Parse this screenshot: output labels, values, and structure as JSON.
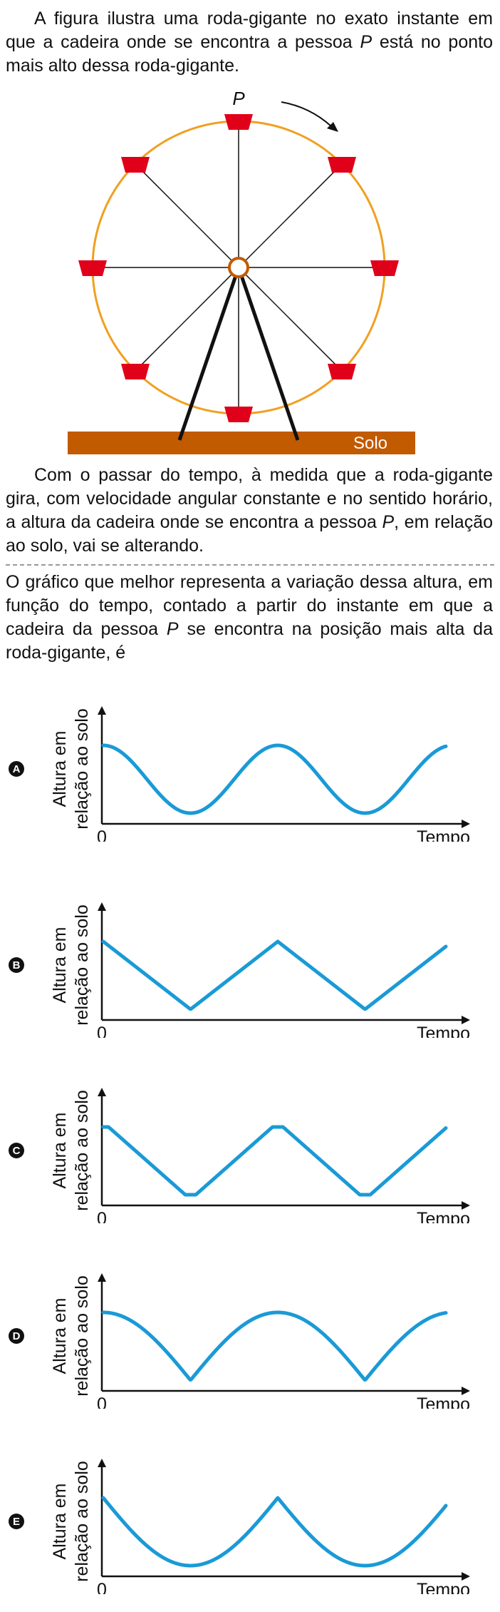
{
  "intro": {
    "part1": "A figura ilustra uma roda-gigante no exato instante em que a cadeira onde se encontra a pessoa ",
    "var_p": "P",
    "part2": " está no ponto mais alto dessa roda-gigante."
  },
  "figure": {
    "point_label": "P",
    "ground_label": "Solo",
    "colors": {
      "rim": "#f0a020",
      "seat": "#e0001a",
      "ground": "#c25a00",
      "spokes": "#111111"
    }
  },
  "context": {
    "part1": "Com o passar do tempo, à medida que a roda-gigante gira, com velocidade angular constante e no sentido horário, a altura da cadeira onde se encontra a pessoa ",
    "var_p": "P",
    "part2": ", em relação ao solo, vai se alterando."
  },
  "question": {
    "part1": "O gráfico que melhor representa a variação dessa altura, em função do tempo, contado a partir do instante em que a cadeira da pessoa ",
    "var_p": "P",
    "part2": " se encontra na posição mais alta da roda-gigante, é"
  },
  "curve_color": "#1a9ad6",
  "chart_data": [
    {
      "type": "line",
      "option": "A",
      "shape": "smooth-sinusoid",
      "ylabel_line1": "Altura em",
      "ylabel_line2": "relação ao solo",
      "xlabel": "Tempo",
      "origin_label": "0"
    },
    {
      "type": "line",
      "option": "B",
      "shape": "triangular",
      "ylabel_line1": "Altura em",
      "ylabel_line2": "relação ao solo",
      "xlabel": "Tempo",
      "origin_label": "0"
    },
    {
      "type": "line",
      "option": "C",
      "shape": "trapezoidal",
      "ylabel_line1": "Altura em",
      "ylabel_line2": "relação ao solo",
      "xlabel": "Tempo",
      "origin_label": "0"
    },
    {
      "type": "line",
      "option": "D",
      "shape": "rounded-peaks-sharp-troughs",
      "ylabel_line1": "Altura em",
      "ylabel_line2": "relação ao solo",
      "xlabel": "Tempo",
      "origin_label": "0"
    },
    {
      "type": "line",
      "option": "E",
      "shape": "sharp-peaks-rounded-troughs",
      "ylabel_line1": "Altura em",
      "ylabel_line2": "relação ao solo",
      "xlabel": "Tempo",
      "origin_label": "0"
    }
  ]
}
